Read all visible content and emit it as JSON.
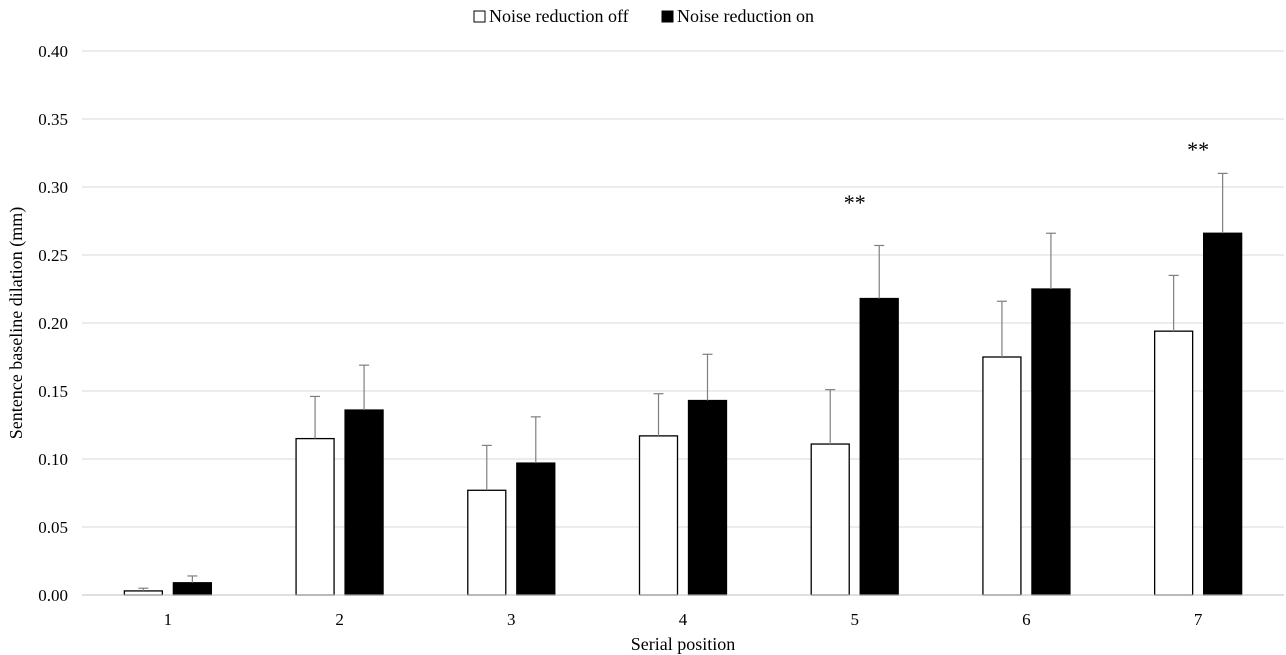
{
  "chart_data": {
    "type": "bar",
    "title": "",
    "xlabel": "Serial position",
    "ylabel": "Sentence baseline dilation (mm)",
    "categories": [
      "1",
      "2",
      "3",
      "4",
      "5",
      "6",
      "7"
    ],
    "ylim": [
      0,
      0.4
    ],
    "yticks": [
      "0.00",
      "0.05",
      "0.10",
      "0.15",
      "0.20",
      "0.25",
      "0.30",
      "0.35",
      "0.40"
    ],
    "grid": true,
    "legend_position": "top-center",
    "series": [
      {
        "name": "Noise reduction off",
        "fill": "#ffffff",
        "stroke": "#000000",
        "values": [
          0.003,
          0.115,
          0.077,
          0.117,
          0.111,
          0.175,
          0.194
        ],
        "error_upper": [
          0.005,
          0.146,
          0.11,
          0.148,
          0.151,
          0.216,
          0.235
        ]
      },
      {
        "name": "Noise reduction on",
        "fill": "#000000",
        "stroke": "#000000",
        "values": [
          0.009,
          0.136,
          0.097,
          0.143,
          0.218,
          0.225,
          0.266
        ],
        "error_upper": [
          0.014,
          0.169,
          0.131,
          0.177,
          0.257,
          0.266,
          0.31
        ]
      }
    ],
    "annotations": [
      {
        "category": "5",
        "text": "**",
        "y": 0.283
      },
      {
        "category": "7",
        "text": "**",
        "y": 0.322
      }
    ]
  }
}
